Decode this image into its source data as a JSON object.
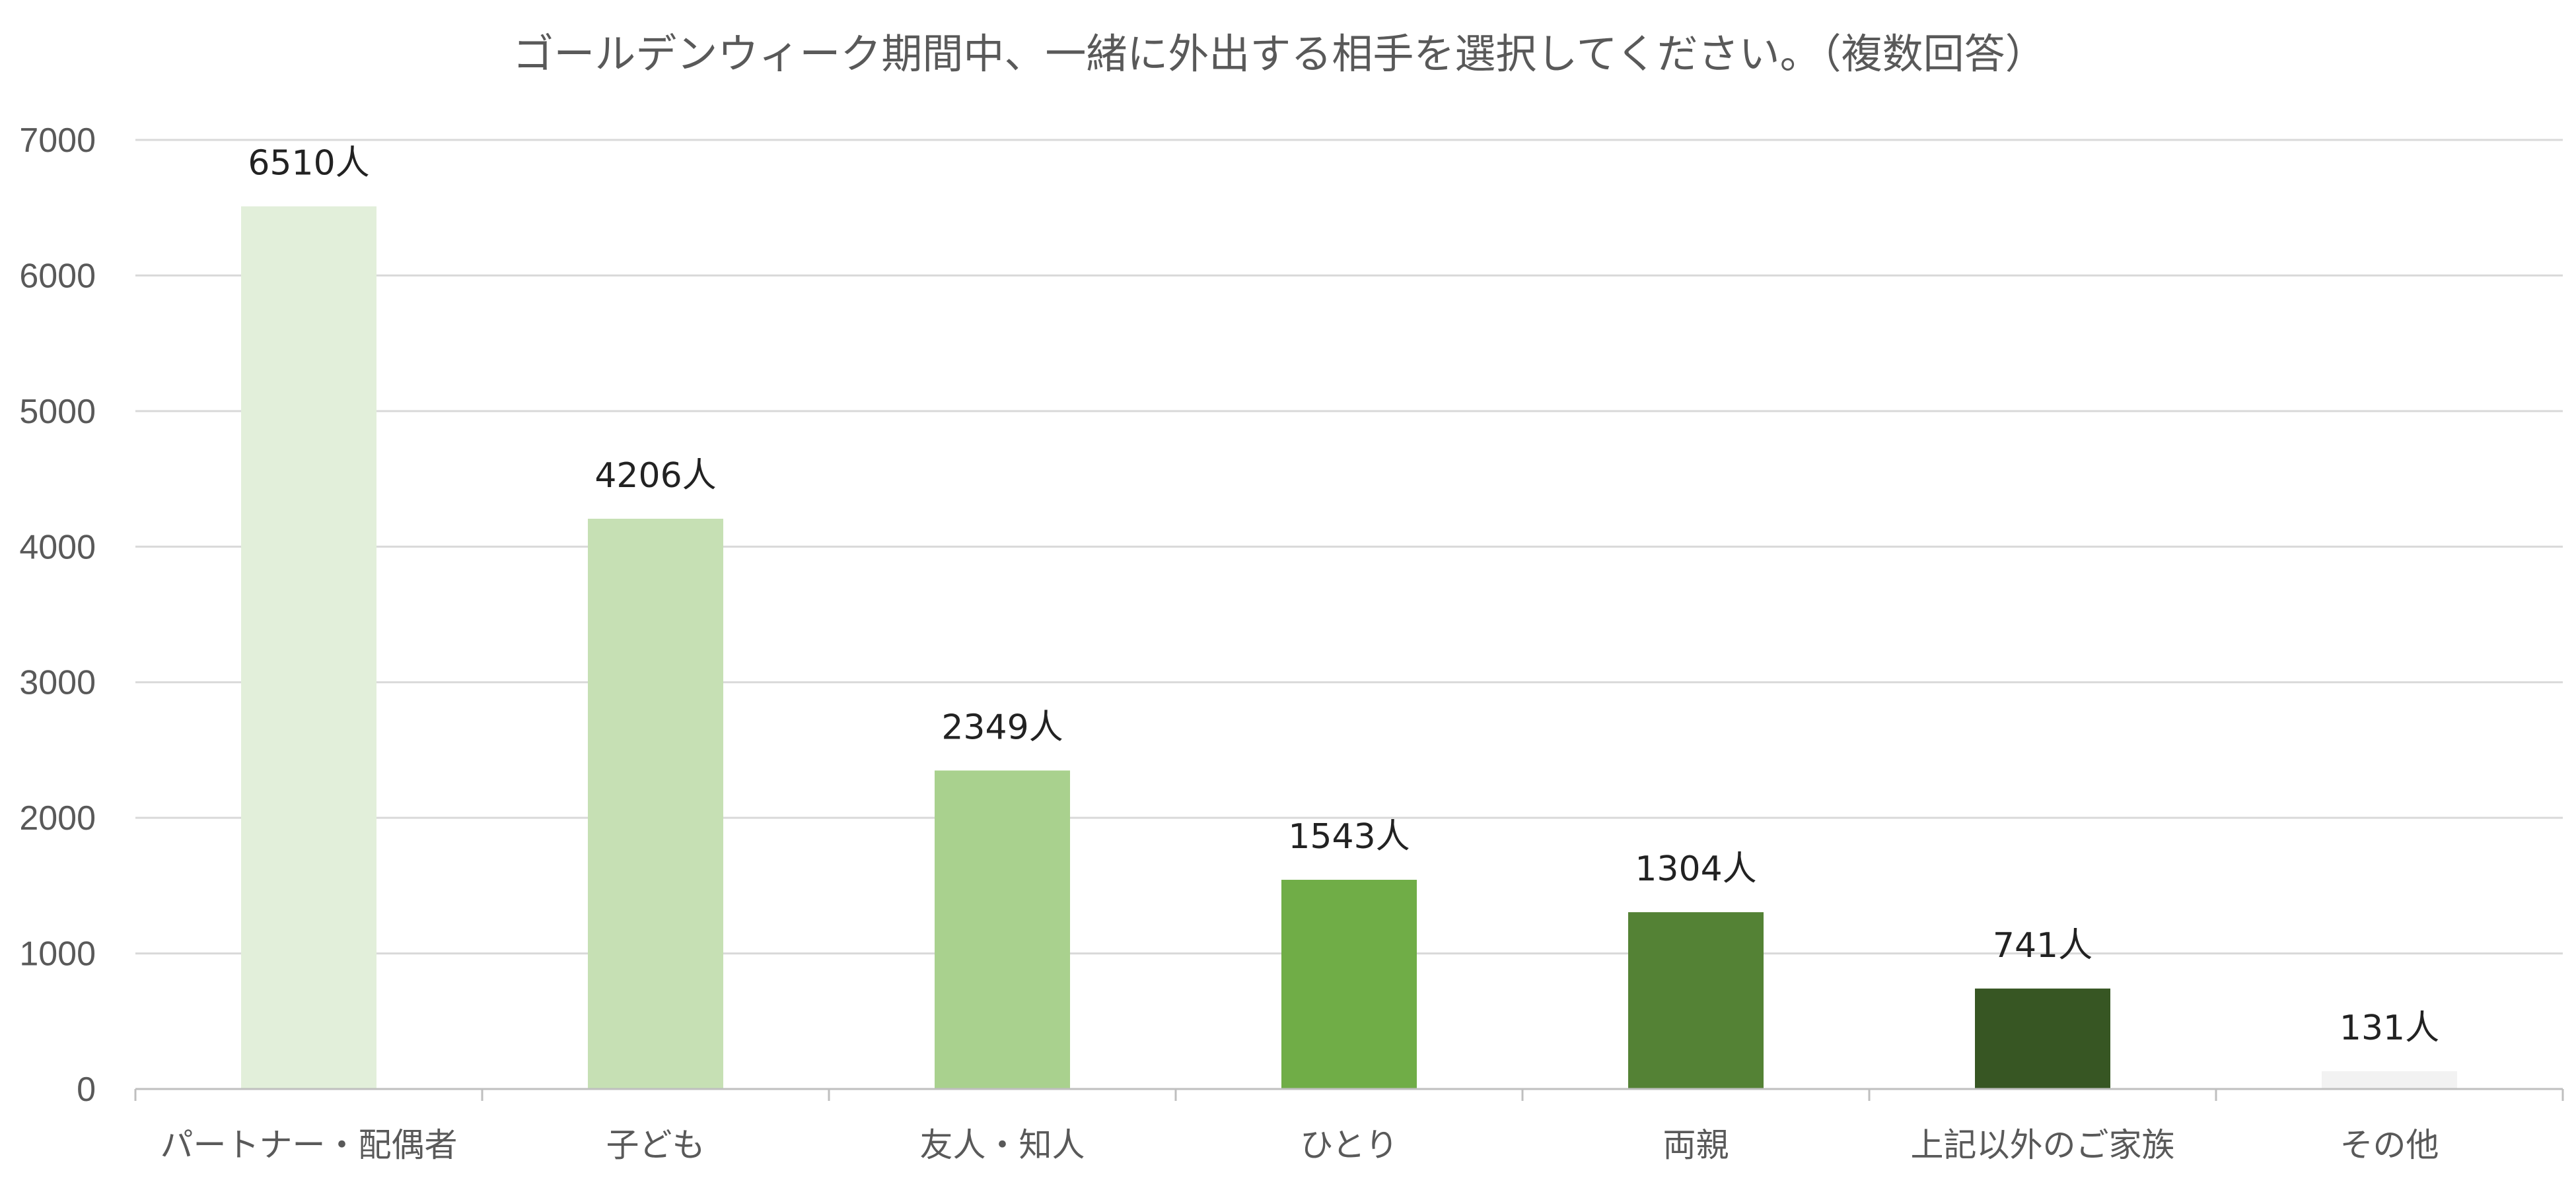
{
  "chart_data": {
    "type": "bar",
    "title": "ゴールデンウィーク期間中、一緒に外出する相手を選択してください。（複数回答）",
    "xlabel": "",
    "ylabel": "",
    "categories": [
      "パートナー・配偶者",
      "子ども",
      "友人・知人",
      "ひとり",
      "両親",
      "上記以外のご家族",
      "その他"
    ],
    "values": [
      6510,
      4206,
      2349,
      1543,
      1304,
      741,
      131
    ],
    "data_labels": [
      "6510人",
      "4206人",
      "2349人",
      "1543人",
      "1304人",
      "741人",
      "131人"
    ],
    "bar_colors": [
      "#e2efda",
      "#c6e0b4",
      "#a9d18e",
      "#70ad47",
      "#548235",
      "#375623",
      "#f2f2f2"
    ],
    "ylim": [
      0,
      7000
    ],
    "yticks": [
      0,
      1000,
      2000,
      3000,
      4000,
      5000,
      6000,
      7000
    ],
    "grid": true,
    "legend": "none"
  }
}
